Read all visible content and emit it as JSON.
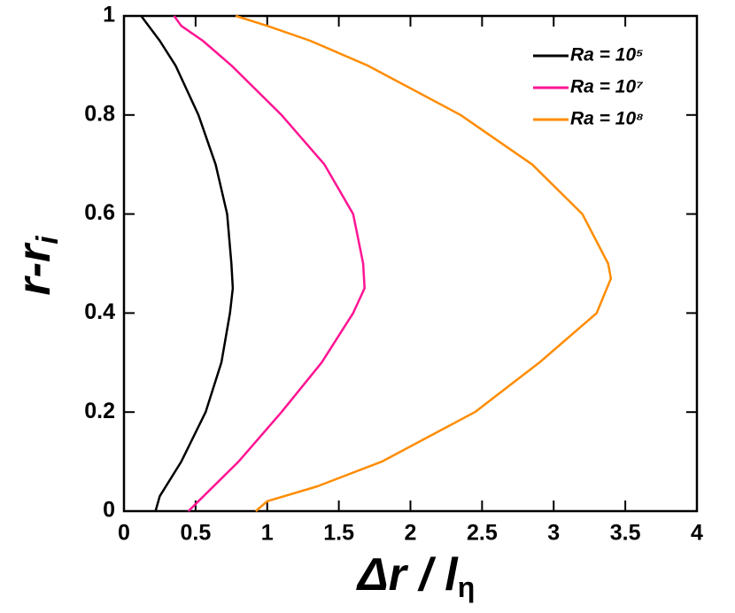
{
  "chart_data": {
    "type": "line",
    "x_label": "Δr / l",
    "x_label_sub": "η",
    "y_label": "r-r",
    "y_label_sub": "i",
    "xlim": [
      0,
      4
    ],
    "xticks": [
      0,
      0.5,
      1,
      1.5,
      2,
      2.5,
      3,
      3.5,
      4
    ],
    "ylim": [
      0,
      1
    ],
    "yticks": [
      0,
      0.2,
      0.4,
      0.6,
      0.8,
      1
    ],
    "legend": "upper right",
    "series": [
      {
        "name": "Ra = 10⁵",
        "color": "#000000",
        "x": [
          0.22,
          0.25,
          0.4,
          0.57,
          0.68,
          0.74,
          0.76,
          0.75,
          0.72,
          0.64,
          0.52,
          0.36,
          0.25,
          0.12
        ],
        "values": [
          0,
          0.03,
          0.1,
          0.2,
          0.3,
          0.4,
          0.45,
          0.5,
          0.6,
          0.7,
          0.8,
          0.9,
          0.95,
          1
        ]
      },
      {
        "name": "Ra = 10⁷",
        "color": "#ff1493",
        "x": [
          0.45,
          0.52,
          0.8,
          1.1,
          1.38,
          1.6,
          1.68,
          1.67,
          1.6,
          1.4,
          1.1,
          0.75,
          0.55,
          0.4,
          0.35
        ],
        "values": [
          0,
          0.02,
          0.1,
          0.2,
          0.3,
          0.4,
          0.45,
          0.5,
          0.6,
          0.7,
          0.8,
          0.9,
          0.95,
          0.98,
          1
        ]
      },
      {
        "name": "Ra = 10⁸",
        "color": "#ff8c00",
        "x": [
          0.92,
          1.0,
          1.35,
          1.8,
          2.45,
          2.9,
          3.3,
          3.4,
          3.38,
          3.2,
          2.85,
          2.35,
          1.7,
          1.3,
          1.0,
          0.78
        ],
        "values": [
          0,
          0.02,
          0.05,
          0.1,
          0.2,
          0.3,
          0.4,
          0.47,
          0.5,
          0.6,
          0.7,
          0.8,
          0.9,
          0.95,
          0.98,
          1
        ]
      }
    ]
  }
}
